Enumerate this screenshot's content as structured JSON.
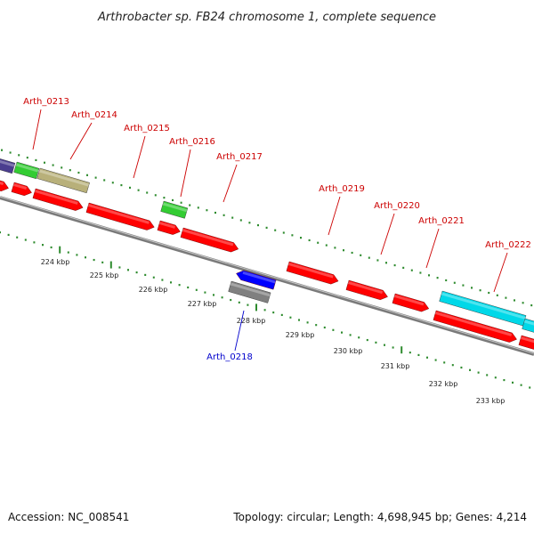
{
  "title": "Arthrobacter sp. FB24 chromosome 1, complete sequence",
  "footer": {
    "accession": "Accession: NC_008541",
    "topology": "Topology: circular; Length: 4,698,945 bp; Genes: 4,214"
  },
  "colors": {
    "forward_gene": "#ff0000",
    "reverse_gene": "#0000ff",
    "label_forward": "#cc0000",
    "label_reverse": "#0000cc",
    "tick": "#2e8b2e",
    "backbone": "#808080"
  },
  "kbp_labels": [
    "224 kbp",
    "225 kbp",
    "226 kbp",
    "227 kbp",
    "228 kbp",
    "229 kbp",
    "230 kbp",
    "231 kbp",
    "232 kbp",
    "233 kbp"
  ],
  "gene_labels": [
    "Arth_0213",
    "Arth_0214",
    "Arth_0215",
    "Arth_0216",
    "Arth_0217",
    "Arth_0218",
    "Arth_0219",
    "Arth_0220",
    "Arth_0221",
    "Arth_0222"
  ]
}
